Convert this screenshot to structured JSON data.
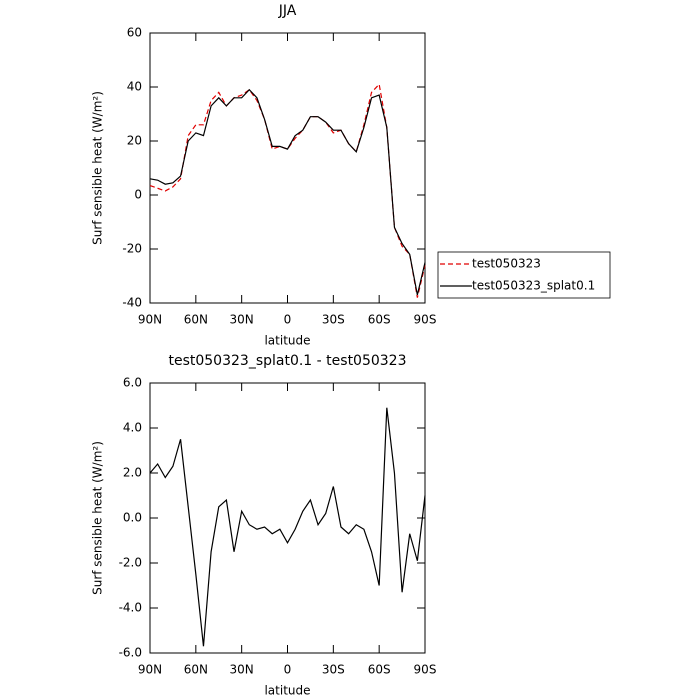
{
  "chart_data": [
    {
      "type": "line",
      "title": "JJA",
      "xlabel": "latitude",
      "ylabel": "Surf sensible heat (W/m²)",
      "x": [
        90,
        85,
        80,
        75,
        70,
        65,
        60,
        55,
        50,
        45,
        40,
        35,
        30,
        25,
        20,
        15,
        10,
        5,
        0,
        -5,
        -10,
        -15,
        -20,
        -25,
        -30,
        -35,
        -40,
        -45,
        -50,
        -55,
        -60,
        -65,
        -70,
        -75,
        -80,
        -85,
        -90
      ],
      "series": [
        {
          "name": "test050323",
          "color": "#e00000",
          "dash": true,
          "values": [
            3.5,
            2.5,
            1.5,
            3,
            6,
            22,
            26,
            26,
            35,
            38,
            33,
            36,
            37,
            39,
            35,
            28,
            17,
            18,
            17,
            21,
            24,
            29,
            29,
            27,
            23,
            24,
            19,
            16,
            26,
            38,
            41,
            25,
            -12,
            -19,
            -22,
            -38,
            -26
          ]
        },
        {
          "name": "test050323_splat0.1",
          "color": "#000000",
          "dash": false,
          "values": [
            6,
            5.5,
            4,
            4.5,
            7,
            20,
            23,
            22,
            33,
            36,
            33,
            36,
            36,
            39,
            36,
            28,
            18,
            18,
            17,
            22,
            24,
            29,
            29,
            27,
            24,
            24,
            19,
            16,
            25,
            36,
            37,
            25,
            -12,
            -18,
            -22,
            -37,
            -25
          ]
        }
      ],
      "xlim": [
        90,
        -90
      ],
      "xticks": [
        {
          "value": 90,
          "label": "90N"
        },
        {
          "value": 60,
          "label": "60N"
        },
        {
          "value": 30,
          "label": "30N"
        },
        0,
        {
          "value": -30,
          "label": "30S"
        },
        {
          "value": -60,
          "label": "60S"
        },
        {
          "value": -90,
          "label": "90S"
        }
      ],
      "ylim": [
        -40,
        60
      ],
      "yticks": [
        -40,
        -20,
        0,
        20,
        40,
        60
      ],
      "legend": "right"
    },
    {
      "type": "line",
      "title": "test050323_splat0.1 - test050323",
      "xlabel": "latitude",
      "ylabel": "Surf sensible heat (W/m²)",
      "x": [
        90,
        85,
        80,
        75,
        70,
        65,
        60,
        55,
        50,
        45,
        40,
        35,
        30,
        25,
        20,
        15,
        10,
        5,
        0,
        -5,
        -10,
        -15,
        -20,
        -25,
        -30,
        -35,
        -40,
        -45,
        -50,
        -55,
        -60,
        -65,
        -70,
        -75,
        -80,
        -85,
        -90
      ],
      "series": [
        {
          "color": "#000000",
          "dash": false,
          "values": [
            2.0,
            2.4,
            1.8,
            2.3,
            3.5,
            0.5,
            -2.5,
            -5.7,
            -1.5,
            0.5,
            0.8,
            -1.5,
            0.3,
            -0.3,
            -0.5,
            -0.4,
            -0.7,
            -0.5,
            -1.1,
            -0.5,
            0.3,
            0.8,
            -0.3,
            0.2,
            1.4,
            -0.4,
            -0.7,
            -0.3,
            -0.5,
            -1.5,
            -3.0,
            4.9,
            2.0,
            -3.3,
            -0.7,
            -1.9,
            1.0
          ]
        }
      ],
      "xlim": [
        90,
        -90
      ],
      "xticks": [
        {
          "value": 90,
          "label": "90N"
        },
        {
          "value": 60,
          "label": "60N"
        },
        {
          "value": 30,
          "label": "30N"
        },
        0,
        {
          "value": -30,
          "label": "30S"
        },
        {
          "value": -60,
          "label": "60S"
        },
        {
          "value": -90,
          "label": "90S"
        }
      ],
      "ylim": [
        -6,
        6
      ],
      "yticks": [
        {
          "value": -6,
          "label": "-6.0"
        },
        {
          "value": -4,
          "label": "-4.0"
        },
        {
          "value": -2,
          "label": "-2.0"
        },
        {
          "value": 0,
          "label": "0.0"
        },
        {
          "value": 2,
          "label": "2.0"
        },
        {
          "value": 4,
          "label": "4.0"
        },
        {
          "value": 6,
          "label": "6.0"
        }
      ]
    }
  ]
}
